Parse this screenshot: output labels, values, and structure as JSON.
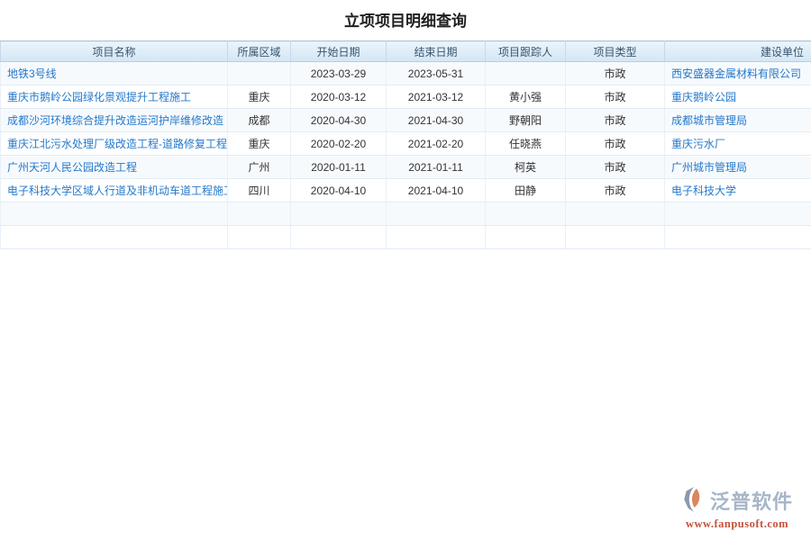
{
  "title": "立项项目明细查询",
  "table": {
    "columns": [
      {
        "label": "项目名称"
      },
      {
        "label": "所属区域"
      },
      {
        "label": "开始日期"
      },
      {
        "label": "结束日期"
      },
      {
        "label": "项目跟踪人"
      },
      {
        "label": "项目类型"
      },
      {
        "label": "建设单位"
      }
    ],
    "rows": [
      {
        "name": "地铁3号线",
        "region": "",
        "start": "2023-03-29",
        "end": "2023-05-31",
        "tracker": "",
        "type": "市政",
        "unit": "西安盛器金属材料有限公司"
      },
      {
        "name": "重庆市鹅岭公园绿化景观提升工程施工",
        "region": "重庆",
        "start": "2020-03-12",
        "end": "2021-03-12",
        "tracker": "黄小强",
        "type": "市政",
        "unit": "重庆鹅岭公园"
      },
      {
        "name": "成都沙河环境综合提升改造运河护岸维修改造",
        "region": "成都",
        "start": "2020-04-30",
        "end": "2021-04-30",
        "tracker": "野朝阳",
        "type": "市政",
        "unit": "成都城市管理局"
      },
      {
        "name": "重庆江北污水处理厂级改造工程-道路修复工程",
        "region": "重庆",
        "start": "2020-02-20",
        "end": "2021-02-20",
        "tracker": "任晓燕",
        "type": "市政",
        "unit": "重庆污水厂"
      },
      {
        "name": "广州天河人民公园改造工程",
        "region": "广州",
        "start": "2020-01-11",
        "end": "2021-01-11",
        "tracker": "柯英",
        "type": "市政",
        "unit": "广州城市管理局"
      },
      {
        "name": "电子科技大学区域人行道及非机动车道工程施工",
        "region": "四川",
        "start": "2020-04-10",
        "end": "2021-04-10",
        "tracker": "田静",
        "type": "市政",
        "unit": "电子科技大学"
      }
    ],
    "empty_row_count": 2
  },
  "watermark": {
    "brand": "泛普软件",
    "url": "www.fanpusoft.com"
  },
  "colors": {
    "link_blue": "#2478cb",
    "header_bg": "#d8e9f7",
    "header_text": "#3c566d",
    "row_stripe": "#f7fafd",
    "brand_text": "#a6b6c8",
    "brand_url": "#c2523c",
    "logo_gray": "#8b99ab",
    "logo_orange": "#d8875f"
  }
}
